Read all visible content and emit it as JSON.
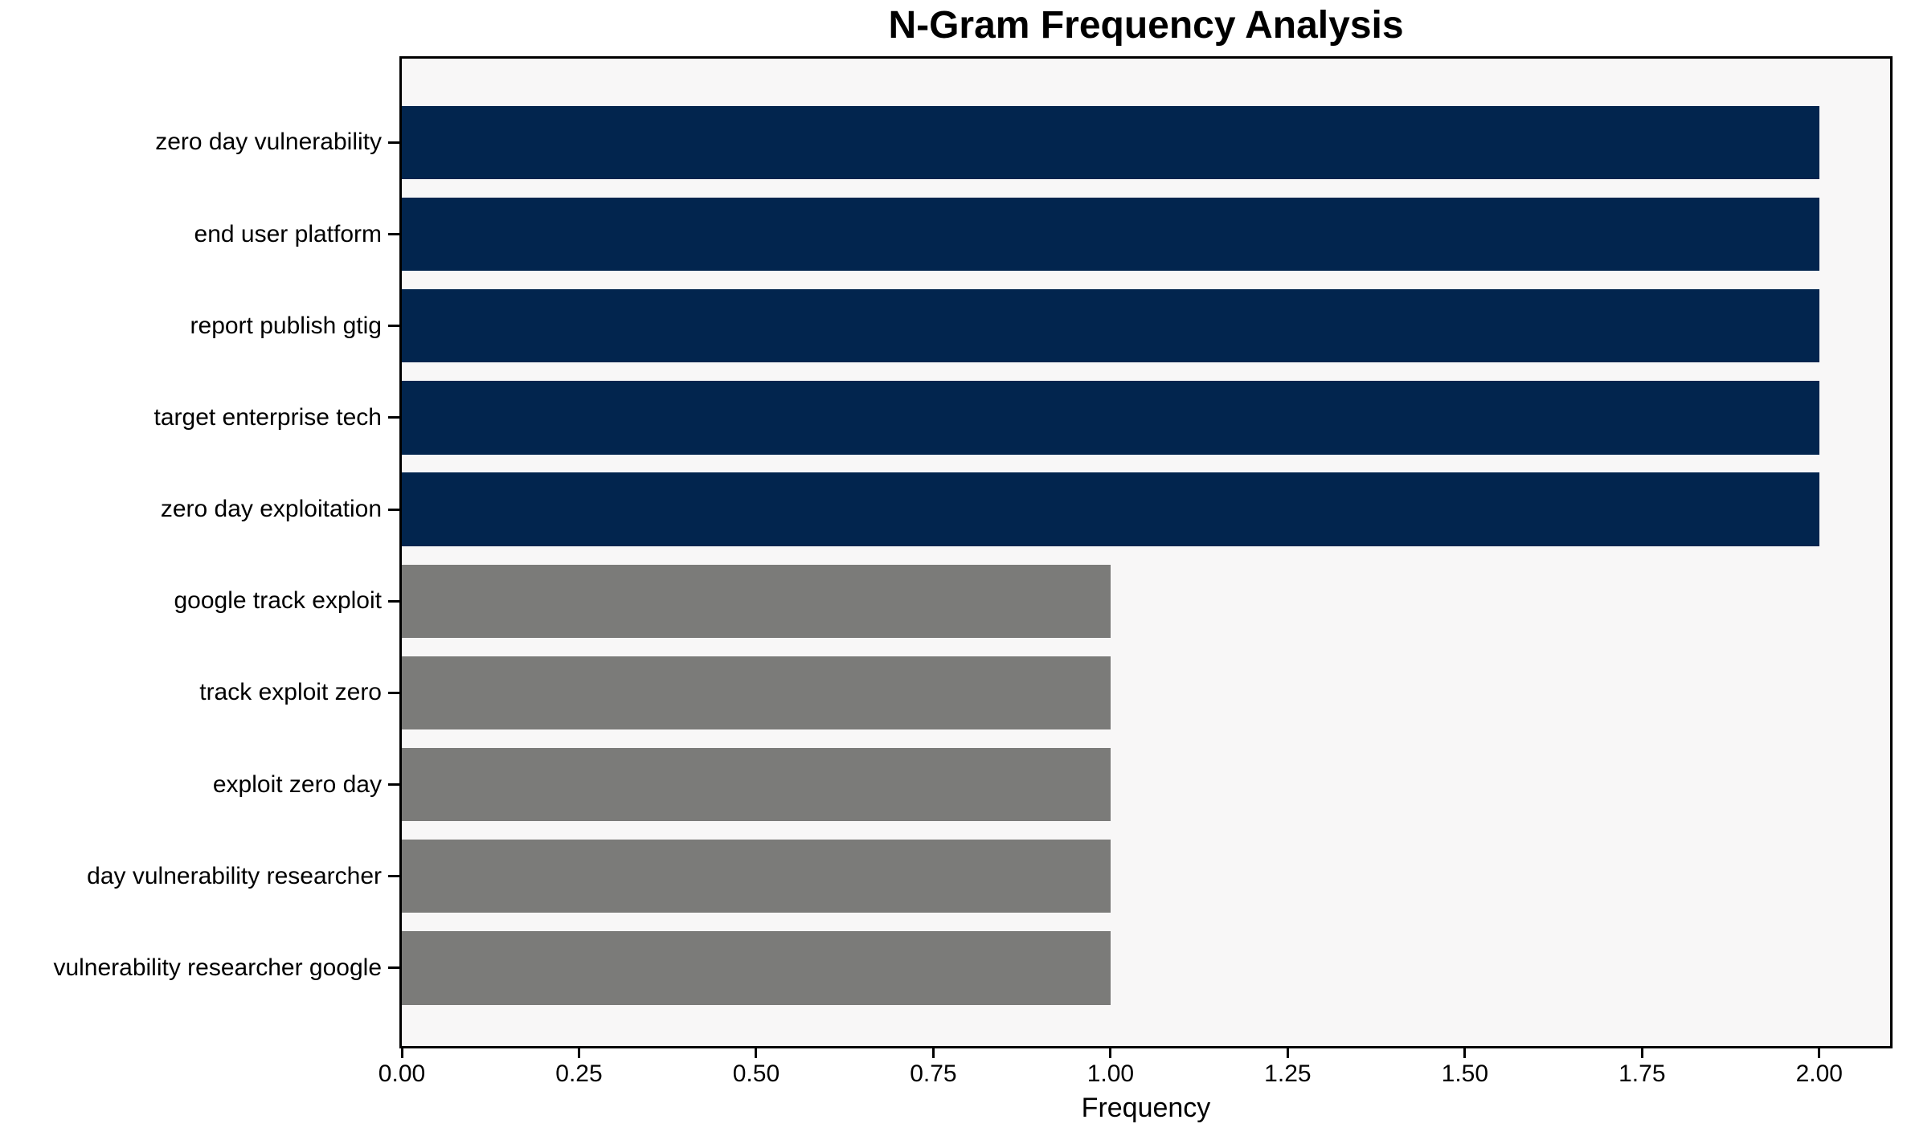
{
  "chart_data": {
    "type": "bar",
    "orientation": "horizontal",
    "title": "N-Gram Frequency Analysis",
    "xlabel": "Frequency",
    "ylabel": "",
    "categories": [
      "zero day vulnerability",
      "end user platform",
      "report publish gtig",
      "target enterprise tech",
      "zero day exploitation",
      "google track exploit",
      "track exploit zero",
      "exploit zero day",
      "day vulnerability researcher",
      "vulnerability researcher google"
    ],
    "values": [
      2,
      2,
      2,
      2,
      2,
      1,
      1,
      1,
      1,
      1
    ],
    "bar_colors": [
      "#02254e",
      "#02254e",
      "#02254e",
      "#02254e",
      "#02254e",
      "#7b7b79",
      "#7b7b79",
      "#7b7b79",
      "#7b7b79",
      "#7b7b79"
    ],
    "xlim": [
      0,
      2.1
    ],
    "xtick_values": [
      0,
      0.25,
      0.5,
      0.75,
      1.0,
      1.25,
      1.5,
      1.75,
      2.0
    ],
    "xtick_labels": [
      "0.00",
      "0.25",
      "0.50",
      "0.75",
      "1.00",
      "1.25",
      "1.50",
      "1.75",
      "2.00"
    ],
    "grid": false,
    "legend": null,
    "colors": {
      "bar_high_frequency": "#02254e",
      "bar_low_frequency": "#7b7b79",
      "plot_background": "#f8f7f7",
      "figure_background": "#ffffff",
      "axis": "#000000",
      "text": "#000000"
    }
  }
}
